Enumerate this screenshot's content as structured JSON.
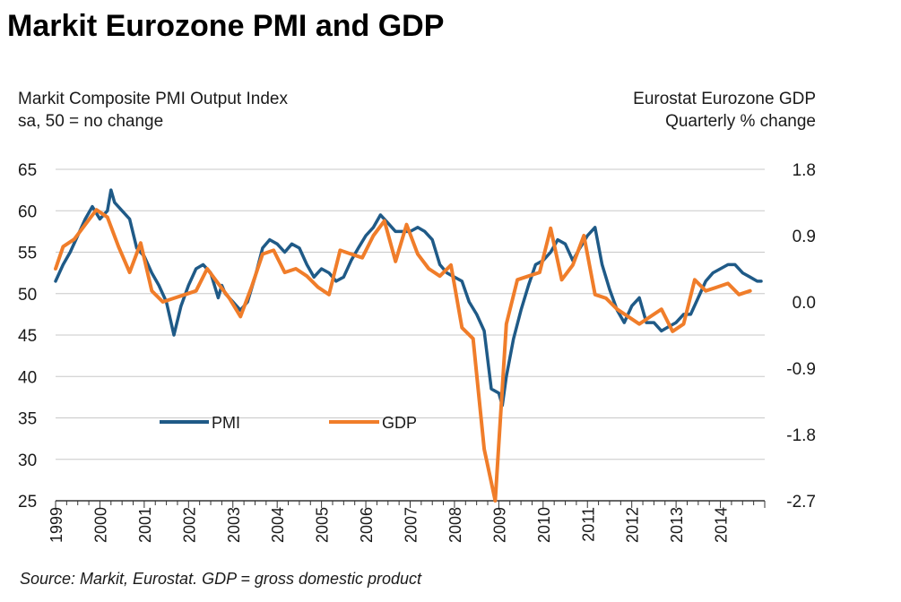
{
  "title": "Markit Eurozone PMI and GDP",
  "source": "Source: Markit, Eurostat. GDP = gross domestic product",
  "chart_data": {
    "type": "line",
    "left_axis_label": [
      "Markit Composite PMI Output Index",
      "sa, 50 = no change"
    ],
    "right_axis_label": [
      "Eurostat Eurozone GDP",
      "Quarterly % change"
    ],
    "x_range": [
      1999.0,
      2015.0
    ],
    "x_ticks": [
      "1999",
      "2000",
      "2001",
      "2002",
      "2003",
      "2004",
      "2005",
      "2006",
      "2007",
      "2008",
      "2009",
      "2010",
      "2011",
      "2012",
      "2013",
      "2014"
    ],
    "y_left": {
      "range": [
        25,
        65
      ],
      "ticks": [
        25,
        30,
        35,
        40,
        45,
        50,
        55,
        60,
        65
      ]
    },
    "y_right": {
      "range": [
        -2.7,
        1.8
      ],
      "ticks": [
        "1.8",
        "0.9",
        "0.0",
        "-0.9",
        "-1.8",
        "-2.7"
      ]
    },
    "grid": "horizontal",
    "legend_position": "inside-lower-left",
    "colors": {
      "PMI": "#1f5a87",
      "GDP": "#f07d2a",
      "grid": "#c8c8c8"
    },
    "series": [
      {
        "name": "PMI",
        "axis": "left",
        "x": [
          1999.0,
          1999.17,
          1999.33,
          1999.5,
          1999.67,
          1999.83,
          2000.0,
          2000.17,
          2000.25,
          2000.33,
          2000.5,
          2000.67,
          2000.83,
          2001.0,
          2001.17,
          2001.33,
          2001.5,
          2001.67,
          2001.83,
          2002.0,
          2002.17,
          2002.33,
          2002.5,
          2002.67,
          2002.75,
          2002.83,
          2003.0,
          2003.17,
          2003.33,
          2003.5,
          2003.67,
          2003.83,
          2004.0,
          2004.17,
          2004.33,
          2004.5,
          2004.67,
          2004.83,
          2005.0,
          2005.17,
          2005.33,
          2005.5,
          2005.67,
          2005.83,
          2006.0,
          2006.17,
          2006.33,
          2006.5,
          2006.67,
          2006.83,
          2007.0,
          2007.17,
          2007.33,
          2007.5,
          2007.67,
          2007.83,
          2008.0,
          2008.17,
          2008.33,
          2008.5,
          2008.67,
          2008.83,
          2009.0,
          2009.08,
          2009.17,
          2009.33,
          2009.5,
          2009.67,
          2009.83,
          2010.0,
          2010.17,
          2010.33,
          2010.5,
          2010.67,
          2010.83,
          2011.0,
          2011.17,
          2011.33,
          2011.5,
          2011.67,
          2011.83,
          2012.0,
          2012.17,
          2012.33,
          2012.5,
          2012.67,
          2012.83,
          2013.0,
          2013.17,
          2013.33,
          2013.5,
          2013.67,
          2013.83,
          2014.0,
          2014.17,
          2014.33,
          2014.5,
          2014.67,
          2014.83,
          2014.92
        ],
        "values": [
          51.5,
          53.5,
          55.0,
          57.0,
          59.0,
          60.5,
          59.0,
          60.0,
          62.5,
          61.0,
          60.0,
          59.0,
          55.5,
          54.5,
          52.5,
          51.0,
          49.0,
          45.0,
          48.5,
          51.0,
          53.0,
          53.5,
          52.5,
          49.5,
          51.0,
          50.0,
          49.0,
          48.0,
          49.0,
          52.0,
          55.5,
          56.5,
          56.0,
          55.0,
          56.0,
          55.5,
          53.5,
          52.0,
          53.0,
          52.5,
          51.5,
          52.0,
          54.0,
          55.5,
          57.0,
          58.0,
          59.5,
          58.5,
          57.5,
          57.5,
          57.5,
          58.0,
          57.5,
          56.5,
          53.5,
          52.5,
          52.0,
          51.5,
          49.0,
          47.5,
          45.5,
          38.5,
          38.0,
          36.5,
          40.0,
          44.5,
          48.0,
          51.0,
          53.5,
          54.0,
          55.0,
          56.5,
          56.0,
          54.0,
          55.5,
          57.0,
          58.0,
          53.5,
          50.5,
          48.0,
          46.5,
          48.5,
          49.5,
          46.5,
          46.5,
          45.5,
          46.0,
          46.5,
          47.5,
          47.5,
          49.5,
          51.5,
          52.5,
          53.0,
          53.5,
          53.5,
          52.5,
          52.0,
          51.5,
          51.5
        ]
      },
      {
        "name": "GDP",
        "axis": "right",
        "x": [
          1999.0,
          1999.17,
          1999.42,
          1999.67,
          1999.92,
          2000.17,
          2000.42,
          2000.67,
          2000.92,
          2001.17,
          2001.42,
          2001.67,
          2001.92,
          2002.17,
          2002.42,
          2002.67,
          2002.92,
          2003.17,
          2003.42,
          2003.67,
          2003.92,
          2004.17,
          2004.42,
          2004.67,
          2004.92,
          2005.17,
          2005.42,
          2005.67,
          2005.92,
          2006.17,
          2006.42,
          2006.67,
          2006.92,
          2007.17,
          2007.42,
          2007.67,
          2007.92,
          2008.17,
          2008.42,
          2008.67,
          2008.92,
          2009.17,
          2009.42,
          2009.67,
          2009.92,
          2010.17,
          2010.42,
          2010.67,
          2010.92,
          2011.17,
          2011.42,
          2011.67,
          2011.92,
          2012.17,
          2012.42,
          2012.67,
          2012.92,
          2013.17,
          2013.42,
          2013.67,
          2013.92,
          2014.17,
          2014.42,
          2014.67
        ],
        "values": [
          0.45,
          0.75,
          0.85,
          1.05,
          1.25,
          1.15,
          0.75,
          0.4,
          0.8,
          0.15,
          0.0,
          0.05,
          0.1,
          0.15,
          0.45,
          0.25,
          0.05,
          -0.2,
          0.2,
          0.65,
          0.7,
          0.4,
          0.45,
          0.35,
          0.2,
          0.1,
          0.7,
          0.65,
          0.6,
          0.9,
          1.1,
          0.55,
          1.05,
          0.65,
          0.45,
          0.35,
          0.5,
          -0.35,
          -0.5,
          -2.0,
          -2.7,
          -0.3,
          0.3,
          0.35,
          0.4,
          1.0,
          0.3,
          0.5,
          0.9,
          0.1,
          0.05,
          -0.1,
          -0.2,
          -0.3,
          -0.2,
          -0.1,
          -0.4,
          -0.3,
          0.3,
          0.15,
          0.2,
          0.25,
          0.1,
          0.15
        ]
      }
    ]
  }
}
